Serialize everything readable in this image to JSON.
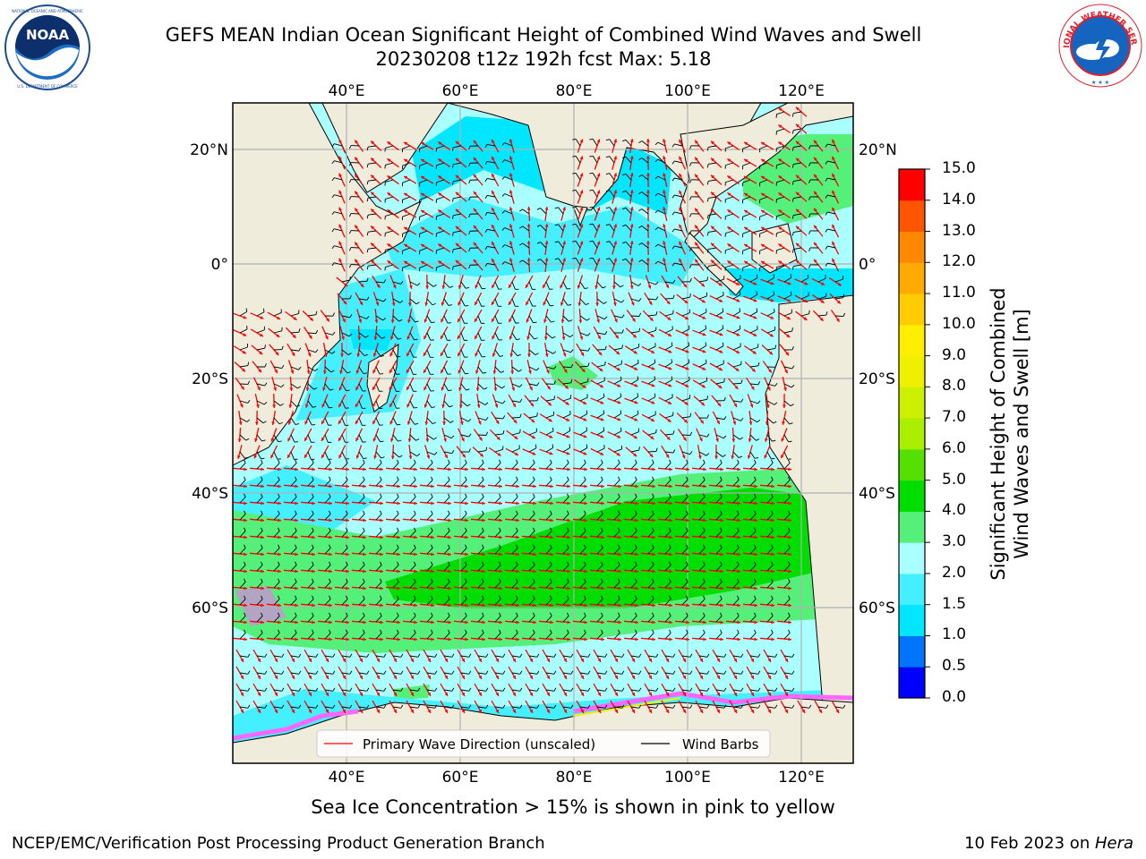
{
  "header": {
    "title_line1": "GEFS MEAN Indian Ocean Significant Height of Combined Wind Waves and Swell",
    "title_line2": "20230208 t12z 192h fcst   Max: 5.18"
  },
  "logos": {
    "left": {
      "name": "noaa-logo",
      "text": "NOAA",
      "ring_text": "NATIONAL OCEANIC AND ATMOSPHERIC ADMINISTRATION · U.S. DEPARTMENT OF COMMERCE"
    },
    "right": {
      "name": "national-weather-service-logo",
      "ring_text": "NATIONAL WEATHER SERVICE"
    }
  },
  "map": {
    "lon_labels_top": [
      "40°E",
      "60°E",
      "80°E",
      "100°E",
      "120°E"
    ],
    "lon_labels_bottom": [
      "40°E",
      "60°E",
      "80°E",
      "100°E",
      "120°E"
    ],
    "lat_labels_left": [
      "20°N",
      "0°",
      "20°S",
      "40°S",
      "60°S"
    ],
    "lat_labels_right": [
      "20°N",
      "0°",
      "20°S",
      "40°S",
      "60°S"
    ],
    "colors": {
      "land": "#efecdc",
      "grid": "#b0b0b0",
      "wave_arrow": "#ff0000",
      "barb": "#000000"
    }
  },
  "legend": {
    "entries": [
      {
        "label": "Primary Wave Direction (unscaled)",
        "color": "#ff0000"
      },
      {
        "label": "Wind Barbs",
        "color": "#000000"
      }
    ]
  },
  "colorbar": {
    "label": "Significant Height of Combined Wind Waves and Swell [m]",
    "label_line1": "Significant Height of Combined",
    "label_line2": "Wind Waves and Swell [m]",
    "ticks": [
      "15.0",
      "14.0",
      "13.0",
      "12.0",
      "11.0",
      "10.0",
      "9.0",
      "8.0",
      "7.0",
      "6.0",
      "5.0",
      "4.0",
      "3.0",
      "2.0",
      "1.5",
      "1.0",
      "0.5",
      "0.0"
    ],
    "bins": [
      {
        "from": 0.0,
        "to": 0.5,
        "color": "#0000ff"
      },
      {
        "from": 0.5,
        "to": 1.0,
        "color": "#0073ff"
      },
      {
        "from": 1.0,
        "to": 1.5,
        "color": "#00e6ff"
      },
      {
        "from": 1.5,
        "to": 2.0,
        "color": "#44f0ff"
      },
      {
        "from": 2.0,
        "to": 3.0,
        "color": "#aaffff"
      },
      {
        "from": 3.0,
        "to": 4.0,
        "color": "#55f07a"
      },
      {
        "from": 4.0,
        "to": 5.0,
        "color": "#00dd00"
      },
      {
        "from": 5.0,
        "to": 6.0,
        "color": "#55e000"
      },
      {
        "from": 6.0,
        "to": 7.0,
        "color": "#aaee00"
      },
      {
        "from": 7.0,
        "to": 8.0,
        "color": "#ccf000"
      },
      {
        "from": 8.0,
        "to": 9.0,
        "color": "#eef000"
      },
      {
        "from": 9.0,
        "to": 10.0,
        "color": "#ffee00"
      },
      {
        "from": 10.0,
        "to": 11.0,
        "color": "#ffcc00"
      },
      {
        "from": 11.0,
        "to": 12.0,
        "color": "#ffaa00"
      },
      {
        "from": 12.0,
        "to": 13.0,
        "color": "#ff8800"
      },
      {
        "from": 13.0,
        "to": 14.0,
        "color": "#ff5500"
      },
      {
        "from": 14.0,
        "to": 15.0,
        "color": "#ff0000"
      }
    ]
  },
  "notes": {
    "sea_ice": "Sea Ice Concentration > 15% is shown in pink to yellow"
  },
  "footer": {
    "left": "NCEP/EMC/Verification Post Processing Product Generation Branch",
    "right_date": "10 Feb 2023 on ",
    "right_host": "Hera"
  }
}
